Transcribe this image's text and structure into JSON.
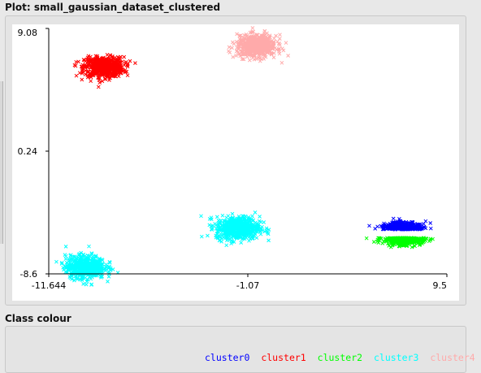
{
  "plot_panel": {
    "title": "Plot: small_gaussian_dataset_clustered"
  },
  "class_colour_panel": {
    "title": "Class colour"
  },
  "chart_data": {
    "type": "scatter",
    "marker": "x",
    "xlim": [
      -11.644,
      9.5
    ],
    "ylim": [
      -8.6,
      9.08
    ],
    "x_ticks": [
      "-11.644",
      "-1.07",
      "9.5"
    ],
    "y_ticks": [
      "9.08",
      "0.24",
      "-8.6"
    ],
    "series": [
      {
        "name": "cluster0",
        "color": "#0000ff",
        "center": [
          7.2,
          -5.4
        ],
        "spread": [
          0.95,
          0.42
        ],
        "shape": "top-half",
        "n": 420
      },
      {
        "name": "cluster1",
        "color": "#ff0000",
        "center": [
          -8.7,
          6.3
        ],
        "spread": [
          0.95,
          0.65
        ],
        "shape": "full",
        "n": 650
      },
      {
        "name": "cluster2",
        "color": "#00ff00",
        "center": [
          7.2,
          -6.0
        ],
        "spread": [
          0.95,
          0.42
        ],
        "shape": "bottom-half",
        "n": 420
      },
      {
        "name": "cluster3",
        "color": "#00ffff",
        "center": [
          -1.6,
          -5.3
        ],
        "spread": [
          1.05,
          0.75
        ],
        "shape": "full",
        "n": 600
      },
      {
        "name": "cluster3",
        "color": "#00ffff",
        "center": [
          -9.7,
          -8.1
        ],
        "spread": [
          0.95,
          0.75
        ],
        "shape": "full",
        "n": 600
      },
      {
        "name": "cluster4",
        "color": "#ffaaaa",
        "center": [
          -0.6,
          7.8
        ],
        "spread": [
          0.95,
          0.72
        ],
        "shape": "full",
        "n": 600
      }
    ]
  },
  "legend": [
    {
      "label": "cluster0",
      "color": "#0000ff"
    },
    {
      "label": "cluster1",
      "color": "#ff0000"
    },
    {
      "label": "cluster2",
      "color": "#00ff00"
    },
    {
      "label": "cluster3",
      "color": "#00ffff"
    },
    {
      "label": "cluster4",
      "color": "#ffaaaa"
    }
  ]
}
